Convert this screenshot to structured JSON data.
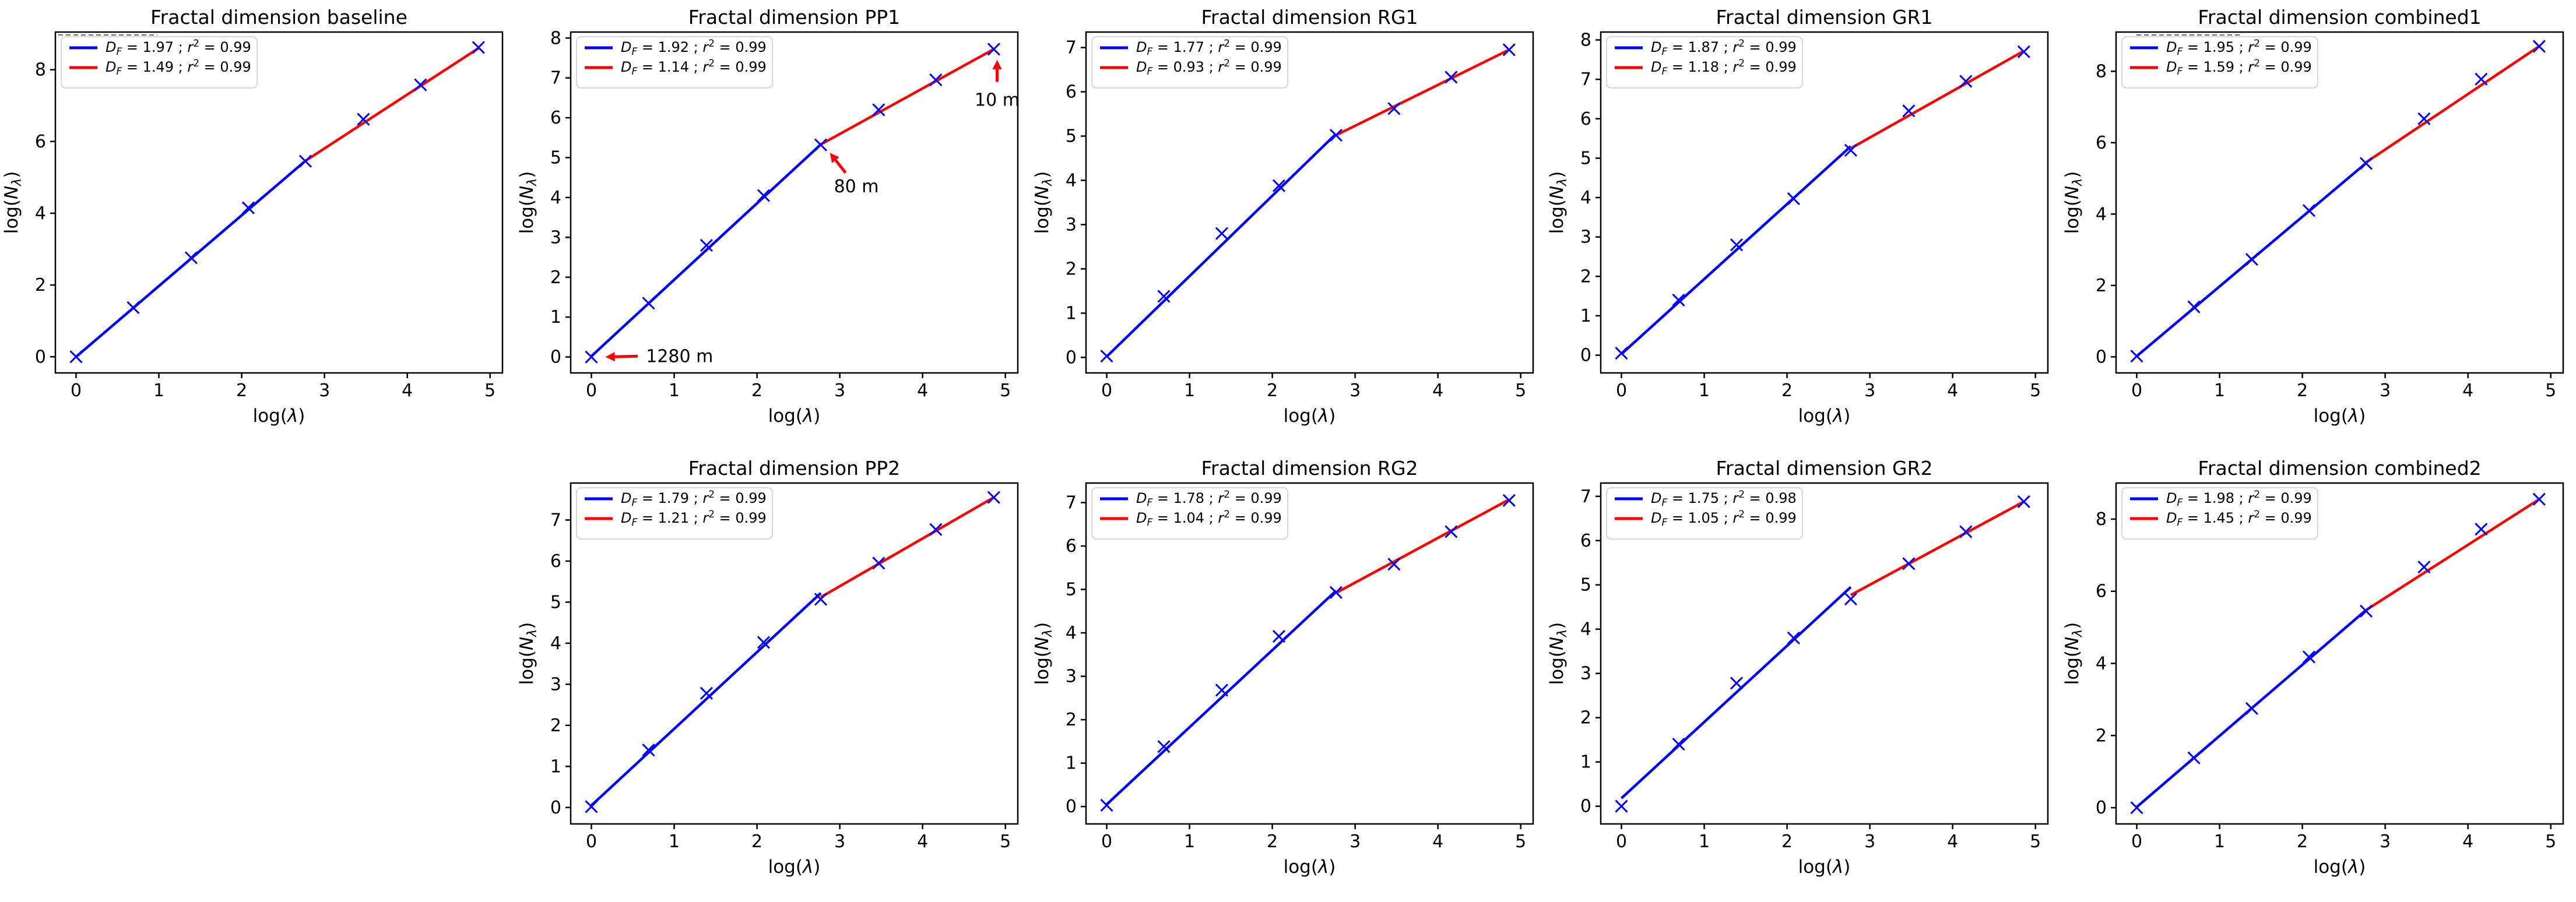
{
  "figure": {
    "background": "#ffffff",
    "colors": {
      "blue": "#0000ff",
      "red": "#ff0000",
      "text": "#000000",
      "spine": "#000000",
      "legend_border": "#cccccc"
    },
    "xlabel": "log(λ)",
    "ylabel": "log(Nλ)",
    "ylabel_parts": {
      "pre": "log(",
      "main": "N",
      "sub": "λ",
      "post": ")"
    },
    "xlabel_parts": {
      "pre": "log(",
      "main": "λ",
      "post": ")"
    },
    "x_tick_labels": [
      "0",
      "1",
      "2",
      "3",
      "4",
      "5"
    ]
  },
  "chart_data": [
    {
      "type": "line",
      "title": "Fractal dimension baseline",
      "xlabel": "log(λ)",
      "ylabel": "log(Nλ)",
      "x": [
        0,
        0.69,
        1.39,
        2.08,
        2.77,
        3.47,
        4.16,
        4.86
      ],
      "y": [
        0,
        1.37,
        2.76,
        4.15,
        5.45,
        6.62,
        7.58,
        8.62
      ],
      "xlim": [
        -0.25,
        5.15
      ],
      "ylim": [
        -0.45,
        9.05
      ],
      "xticks": [
        0,
        1,
        2,
        3,
        4,
        5
      ],
      "yticks": [
        0,
        2,
        4,
        6,
        8
      ],
      "series": [
        {
          "name": "blue-fit",
          "color": "#0000ff",
          "df": "1.97",
          "r2": "0.99",
          "label": "D_F = 1.97 ; r² = 0.99",
          "fit": [
            [
              0,
              0.0
            ],
            [
              2.77,
              5.46
            ]
          ]
        },
        {
          "name": "red-fit",
          "color": "#ff0000",
          "df": "1.49",
          "r2": "0.99",
          "label": "D_F = 1.49 ; r² = 0.99",
          "fit": [
            [
              2.77,
              5.46
            ],
            [
              4.86,
              8.6
            ]
          ]
        }
      ],
      "top_dash": [
        5,
        175
      ],
      "annotations": []
    },
    {
      "type": "line",
      "title": "Fractal dimension PP1",
      "xlabel": "log(λ)",
      "ylabel": "log(Nλ)",
      "x": [
        0,
        0.69,
        1.39,
        2.08,
        2.77,
        3.47,
        4.16,
        4.86
      ],
      "y": [
        0,
        1.35,
        2.8,
        4.05,
        5.32,
        6.2,
        6.95,
        7.72
      ],
      "xlim": [
        -0.25,
        5.15
      ],
      "ylim": [
        -0.4,
        8.15
      ],
      "xticks": [
        0,
        1,
        2,
        3,
        4,
        5
      ],
      "yticks": [
        0,
        1,
        2,
        3,
        4,
        5,
        6,
        7,
        8
      ],
      "series": [
        {
          "name": "blue-fit",
          "color": "#0000ff",
          "df": "1.92",
          "r2": "0.99",
          "label": "D_F = 1.92 ; r² = 0.99",
          "fit": [
            [
              0,
              0.02
            ],
            [
              2.77,
              5.33
            ]
          ]
        },
        {
          "name": "red-fit",
          "color": "#ff0000",
          "df": "1.14",
          "r2": "0.99",
          "label": "D_F = 1.14 ; r² = 0.99",
          "fit": [
            [
              2.77,
              5.33
            ],
            [
              4.86,
              7.72
            ]
          ]
        }
      ],
      "top_dash": null,
      "annotations": [
        {
          "text": "1280 m",
          "text_xy": [
            0.66,
            0.02
          ],
          "anchor": "start",
          "arrow": {
            "from": [
              0.56,
              0.02
            ],
            "to": [
              0.17,
              0.0
            ]
          }
        },
        {
          "text": "80 m",
          "text_xy": [
            3.2,
            4.28
          ],
          "anchor": "middle",
          "arrow": {
            "from": [
              3.07,
              4.62
            ],
            "to": [
              2.88,
              5.12
            ]
          }
        },
        {
          "text": "10 m",
          "text_xy": [
            4.9,
            6.45
          ],
          "anchor": "middle",
          "arrow": {
            "from": [
              4.9,
              6.9
            ],
            "to": [
              4.9,
              7.45
            ]
          }
        }
      ]
    },
    {
      "type": "line",
      "title": "Fractal dimension RG1",
      "xlabel": "log(λ)",
      "ylabel": "log(Nλ)",
      "x": [
        0,
        0.69,
        1.39,
        2.08,
        2.77,
        3.47,
        4.16,
        4.86
      ],
      "y": [
        0.03,
        1.38,
        2.8,
        3.88,
        5.02,
        5.62,
        6.33,
        6.95
      ],
      "xlim": [
        -0.25,
        5.15
      ],
      "ylim": [
        -0.35,
        7.35
      ],
      "xticks": [
        0,
        1,
        2,
        3,
        4,
        5
      ],
      "yticks": [
        0,
        1,
        2,
        3,
        4,
        5,
        6,
        7
      ],
      "series": [
        {
          "name": "blue-fit",
          "color": "#0000ff",
          "df": "1.77",
          "r2": "0.99",
          "label": "D_F = 1.77 ; r² = 0.99",
          "fit": [
            [
              0,
              0.02
            ],
            [
              2.77,
              5.05
            ]
          ]
        },
        {
          "name": "red-fit",
          "color": "#ff0000",
          "df": "0.93",
          "r2": "0.99",
          "label": "D_F = 0.93 ; r² = 0.99",
          "fit": [
            [
              2.77,
              5.02
            ],
            [
              4.86,
              6.95
            ]
          ]
        }
      ],
      "top_dash": null,
      "annotations": []
    },
    {
      "type": "line",
      "title": "Fractal dimension GR1",
      "xlabel": "log(λ)",
      "ylabel": "log(Nλ)",
      "x": [
        0,
        0.69,
        1.39,
        2.08,
        2.77,
        3.47,
        4.16,
        4.86
      ],
      "y": [
        0.05,
        1.4,
        2.8,
        3.97,
        5.2,
        6.2,
        6.95,
        7.7
      ],
      "xlim": [
        -0.25,
        5.15
      ],
      "ylim": [
        -0.45,
        8.2
      ],
      "xticks": [
        0,
        1,
        2,
        3,
        4,
        5
      ],
      "yticks": [
        0,
        1,
        2,
        3,
        4,
        5,
        6,
        7,
        8
      ],
      "series": [
        {
          "name": "blue-fit",
          "color": "#0000ff",
          "df": "1.87",
          "r2": "0.99",
          "label": "D_F = 1.87 ; r² = 0.99",
          "fit": [
            [
              0,
              0.03
            ],
            [
              2.77,
              5.3
            ]
          ]
        },
        {
          "name": "red-fit",
          "color": "#ff0000",
          "df": "1.18",
          "r2": "0.99",
          "label": "D_F = 1.18 ; r² = 0.99",
          "fit": [
            [
              2.77,
              5.25
            ],
            [
              4.86,
              7.72
            ]
          ]
        }
      ],
      "top_dash": null,
      "annotations": []
    },
    {
      "type": "line",
      "title": "Fractal dimension combined1",
      "xlabel": "log(λ)",
      "ylabel": "log(Nλ)",
      "x": [
        0,
        0.69,
        1.39,
        2.08,
        2.77,
        3.47,
        4.16,
        4.86
      ],
      "y": [
        0.02,
        1.4,
        2.73,
        4.1,
        5.42,
        6.67,
        7.78,
        8.7
      ],
      "xlim": [
        -0.25,
        5.15
      ],
      "ylim": [
        -0.45,
        9.1
      ],
      "xticks": [
        0,
        1,
        2,
        3,
        4,
        5
      ],
      "yticks": [
        0,
        2,
        4,
        6,
        8
      ],
      "series": [
        {
          "name": "blue-fit",
          "color": "#0000ff",
          "df": "1.95",
          "r2": "0.99",
          "label": "D_F = 1.95 ; r² = 0.99",
          "fit": [
            [
              0,
              0.02
            ],
            [
              2.77,
              5.43
            ]
          ]
        },
        {
          "name": "red-fit",
          "color": "#ff0000",
          "df": "1.59",
          "r2": "0.99",
          "label": "D_F = 1.59 ; r² = 0.99",
          "fit": [
            [
              2.77,
              5.45
            ],
            [
              4.86,
              8.7
            ]
          ]
        }
      ],
      "top_dash": [
        35,
        215
      ],
      "annotations": []
    },
    {
      "type": "line",
      "title": "Fractal dimension PP2",
      "xlabel": "log(λ)",
      "ylabel": "log(Nλ)",
      "x": [
        0,
        0.69,
        1.39,
        2.08,
        2.77,
        3.47,
        4.16,
        4.86
      ],
      "y": [
        0.02,
        1.4,
        2.78,
        4.02,
        5.07,
        5.95,
        6.77,
        7.55
      ],
      "xlim": [
        -0.25,
        5.15
      ],
      "ylim": [
        -0.4,
        7.9
      ],
      "xticks": [
        0,
        1,
        2,
        3,
        4,
        5
      ],
      "yticks": [
        0,
        1,
        2,
        3,
        4,
        5,
        6,
        7
      ],
      "series": [
        {
          "name": "blue-fit",
          "color": "#0000ff",
          "df": "1.79",
          "r2": "0.99",
          "label": "D_F = 1.79 ; r² = 0.99",
          "fit": [
            [
              0,
              0.05
            ],
            [
              2.77,
              5.22
            ]
          ]
        },
        {
          "name": "red-fit",
          "color": "#ff0000",
          "df": "1.21",
          "r2": "0.99",
          "label": "D_F = 1.21 ; r² = 0.99",
          "fit": [
            [
              2.77,
              5.12
            ],
            [
              4.86,
              7.55
            ]
          ]
        }
      ],
      "top_dash": null,
      "annotations": []
    },
    {
      "type": "line",
      "title": "Fractal dimension RG2",
      "xlabel": "log(λ)",
      "ylabel": "log(Nλ)",
      "x": [
        0,
        0.69,
        1.39,
        2.08,
        2.77,
        3.47,
        4.16,
        4.86
      ],
      "y": [
        0.03,
        1.38,
        2.68,
        3.92,
        4.93,
        5.58,
        6.33,
        7.05
      ],
      "xlim": [
        -0.25,
        5.15
      ],
      "ylim": [
        -0.4,
        7.45
      ],
      "xticks": [
        0,
        1,
        2,
        3,
        4,
        5
      ],
      "yticks": [
        0,
        1,
        2,
        3,
        4,
        5,
        6,
        7
      ],
      "series": [
        {
          "name": "blue-fit",
          "color": "#0000ff",
          "df": "1.78",
          "r2": "0.99",
          "label": "D_F = 1.78 ; r² = 0.99",
          "fit": [
            [
              0,
              0.05
            ],
            [
              2.77,
              4.97
            ]
          ]
        },
        {
          "name": "red-fit",
          "color": "#ff0000",
          "df": "1.04",
          "r2": "0.99",
          "label": "D_F = 1.04 ; r² = 0.99",
          "fit": [
            [
              2.77,
              4.92
            ],
            [
              4.86,
              7.07
            ]
          ]
        }
      ],
      "top_dash": null,
      "annotations": []
    },
    {
      "type": "line",
      "title": "Fractal dimension GR2",
      "xlabel": "log(λ)",
      "ylabel": "log(Nλ)",
      "x": [
        0,
        0.69,
        1.39,
        2.08,
        2.77,
        3.47,
        4.16,
        4.86
      ],
      "y": [
        0.0,
        1.4,
        2.78,
        3.8,
        4.68,
        5.48,
        6.2,
        6.88
      ],
      "xlim": [
        -0.25,
        5.15
      ],
      "ylim": [
        -0.4,
        7.3
      ],
      "xticks": [
        0,
        1,
        2,
        3,
        4,
        5
      ],
      "yticks": [
        0,
        1,
        2,
        3,
        4,
        5,
        6,
        7
      ],
      "series": [
        {
          "name": "blue-fit",
          "color": "#0000ff",
          "df": "1.75",
          "r2": "0.98",
          "label": "D_F = 1.75 ; r² = 0.98",
          "fit": [
            [
              0,
              0.18
            ],
            [
              2.77,
              4.95
            ]
          ]
        },
        {
          "name": "red-fit",
          "color": "#ff0000",
          "df": "1.05",
          "r2": "0.99",
          "label": "D_F = 1.05 ; r² = 0.99",
          "fit": [
            [
              2.77,
              4.77
            ],
            [
              4.86,
              6.88
            ]
          ]
        }
      ],
      "top_dash": null,
      "annotations": []
    },
    {
      "type": "line",
      "title": "Fractal dimension combined2",
      "xlabel": "log(λ)",
      "ylabel": "log(Nλ)",
      "x": [
        0,
        0.69,
        1.39,
        2.08,
        2.77,
        3.47,
        4.16,
        4.86
      ],
      "y": [
        0.0,
        1.38,
        2.75,
        4.18,
        5.45,
        6.67,
        7.72,
        8.55
      ],
      "xlim": [
        -0.25,
        5.15
      ],
      "ylim": [
        -0.45,
        9.0
      ],
      "xticks": [
        0,
        1,
        2,
        3,
        4,
        5
      ],
      "yticks": [
        0,
        2,
        4,
        6,
        8
      ],
      "series": [
        {
          "name": "blue-fit",
          "color": "#0000ff",
          "df": "1.98",
          "r2": "0.99",
          "label": "D_F = 1.98 ; r² = 0.99",
          "fit": [
            [
              0,
              0.02
            ],
            [
              2.77,
              5.48
            ]
          ]
        },
        {
          "name": "red-fit",
          "color": "#ff0000",
          "df": "1.45",
          "r2": "0.99",
          "label": "D_F = 1.45 ; r² = 0.99",
          "fit": [
            [
              2.77,
              5.48
            ],
            [
              4.86,
              8.55
            ]
          ]
        }
      ],
      "top_dash": null,
      "annotations": []
    }
  ]
}
